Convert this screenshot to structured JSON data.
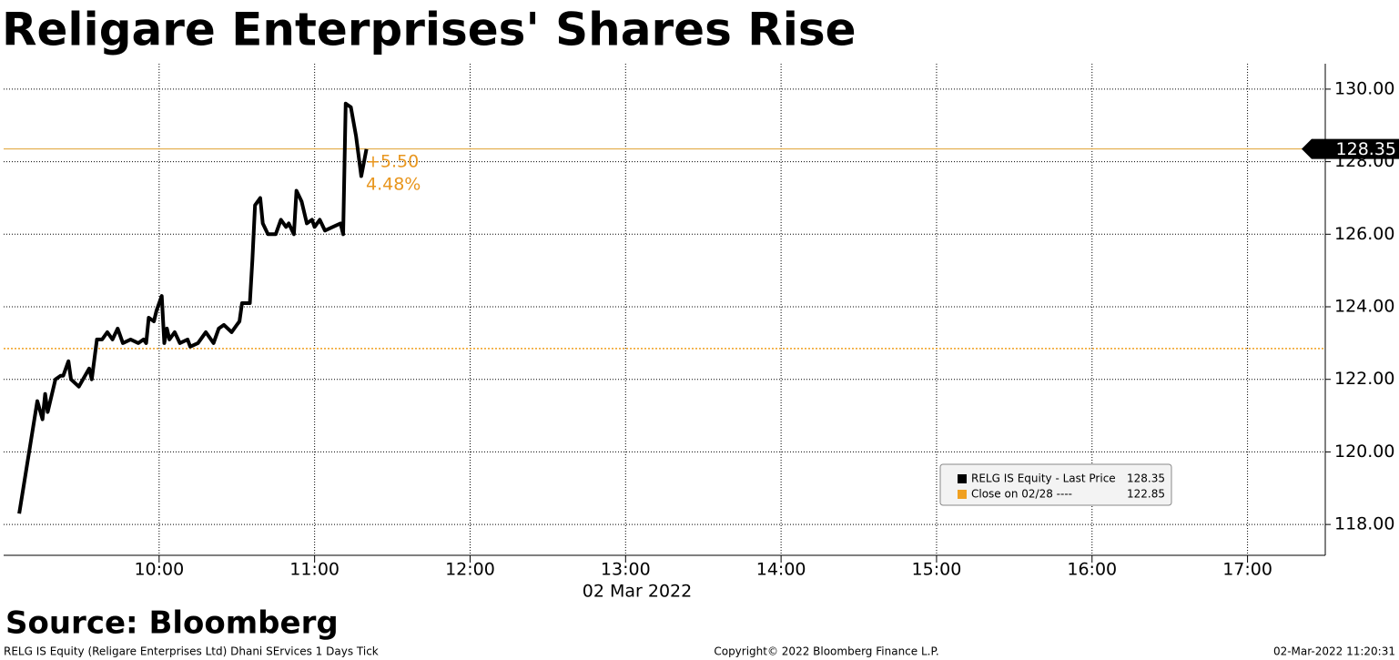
{
  "chart_data": {
    "type": "line",
    "title": "Religare Enterprises' Shares Rise",
    "source": "Source: Bloomberg",
    "x_axis_label": "02 Mar 2022",
    "footer_left": "RELG IS Equity (Religare Enterprises Ltd) Dhani SErvices 1 Days  Tick",
    "footer_center": "Copyright© 2022 Bloomberg Finance L.P.",
    "footer_right": "02-Mar-2022 11:20:31",
    "annotation_change": "+5.50",
    "annotation_change_pct": "4.48%",
    "x": [
      "09:06",
      "09:13",
      "09:15",
      "09:16",
      "09:17",
      "09:20",
      "09:22",
      "09:23",
      "09:25",
      "09:26",
      "09:29",
      "09:33",
      "09:34",
      "09:36",
      "09:38",
      "09:40",
      "09:42",
      "09:44",
      "09:46",
      "09:49",
      "09:52",
      "09:54",
      "09:55",
      "09:56",
      "09:58",
      "09:59",
      "10:01",
      "10:02",
      "10:03",
      "10:04",
      "10:06",
      "10:08",
      "10:11",
      "10:12",
      "10:15",
      "10:18",
      "10:21",
      "10:23",
      "10:25",
      "10:28",
      "10:30",
      "10:31",
      "10:32",
      "10:35",
      "10:36",
      "10:37",
      "10:39",
      "10:40",
      "10:42",
      "10:45",
      "10:47",
      "10:49",
      "10:50",
      "10:52",
      "10:53",
      "10:55",
      "10:57",
      "10:59",
      "11:00",
      "11:02",
      "11:04",
      "11:07",
      "11:10",
      "11:11",
      "11:12",
      "11:14",
      "11:16",
      "11:18",
      "11:20"
    ],
    "series": [
      {
        "name": "RELG IS Equity - Last Price",
        "color": "#000000",
        "last_value": 128.35,
        "values": [
          118.3,
          121.4,
          120.9,
          121.6,
          121.1,
          122.0,
          122.1,
          122.1,
          122.5,
          122.0,
          121.8,
          122.3,
          122.0,
          123.1,
          123.1,
          123.3,
          123.1,
          123.4,
          123.0,
          123.1,
          123.0,
          123.1,
          123.0,
          123.7,
          123.6,
          123.9,
          124.3,
          123.0,
          123.4,
          123.1,
          123.3,
          123.0,
          123.1,
          122.9,
          123.0,
          123.3,
          123.0,
          123.4,
          123.5,
          123.3,
          123.5,
          123.6,
          124.1,
          124.1,
          125.3,
          126.8,
          127.0,
          126.3,
          126.0,
          126.0,
          126.4,
          126.2,
          126.3,
          126.0,
          127.2,
          126.9,
          126.3,
          126.4,
          126.2,
          126.4,
          126.1,
          126.2,
          126.3,
          126.0,
          129.6,
          129.5,
          128.7,
          127.6,
          128.35
        ]
      },
      {
        "name": "Close on 02/28 ----",
        "color": "#f0a020",
        "value": 122.85
      }
    ],
    "last_line_color": "#e0a030",
    "xlim": [
      "09:00",
      "17:30"
    ],
    "xticks": [
      "10:00",
      "11:00",
      "12:00",
      "13:00",
      "14:00",
      "15:00",
      "16:00",
      "17:00"
    ],
    "ylim": [
      117.15,
      130.7
    ],
    "yticks": [
      {
        "value": 118,
        "label": "118.00"
      },
      {
        "value": 120,
        "label": "120.00"
      },
      {
        "value": 122,
        "label": "122.00"
      },
      {
        "value": 124,
        "label": "124.00"
      },
      {
        "value": 126,
        "label": "126.00"
      },
      {
        "value": 128,
        "label": "128.00"
      },
      {
        "value": 130,
        "label": "130.00"
      }
    ],
    "grid": true
  }
}
